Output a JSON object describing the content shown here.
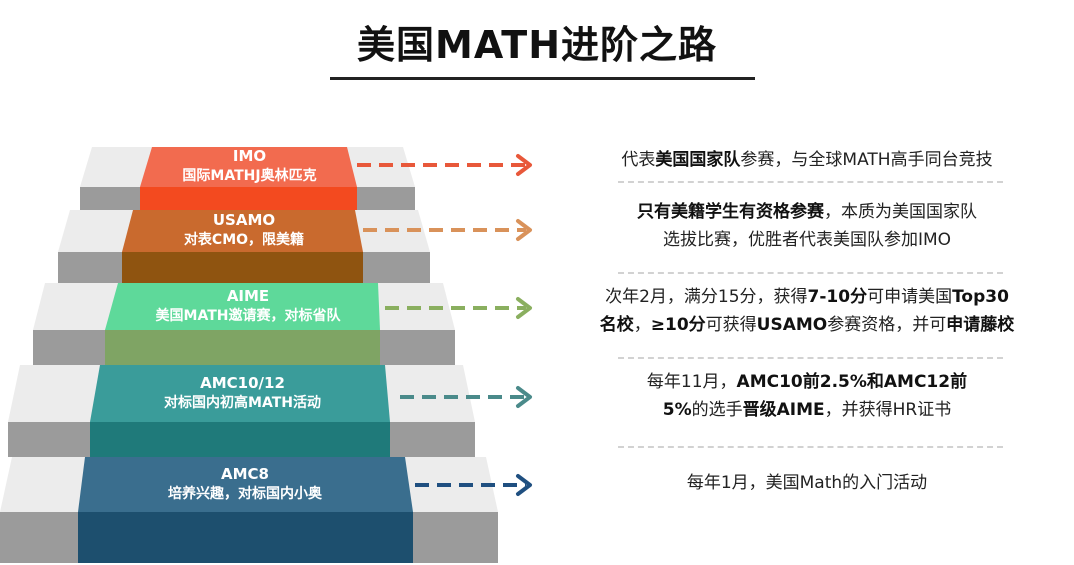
{
  "title": "美国MATH进阶之路",
  "steps": [
    {
      "name": "IMO",
      "desc": "国际MATHJ奥林匹克",
      "top_color": "#f26b4f",
      "front_color": "#f34a1f",
      "arrow_color": "#e8583a"
    },
    {
      "name": "USAMO",
      "desc": "对表CMO，限美籍",
      "top_color": "#c96a2e",
      "front_color": "#8f5410",
      "arrow_color": "#d9925a"
    },
    {
      "name": "AIME",
      "desc": "美国MATH邀请赛，对标省队",
      "top_color": "#5ed99a",
      "front_color": "#7fa464",
      "arrow_color": "#8aaf5f"
    },
    {
      "name": "AMC10/12",
      "desc": "对标国内初高MATH活动",
      "top_color": "#3a9c9a",
      "front_color": "#1f7a7a",
      "arrow_color": "#4a8a8a"
    },
    {
      "name": "AMC8",
      "desc": "培养兴趣，对标国内小奥",
      "top_color": "#3a6e8e",
      "front_color": "#1d4f6e",
      "arrow_color": "#1f4f80"
    }
  ],
  "descriptions": [
    {
      "lines": [
        [
          {
            "t": "代表",
            "b": false
          },
          {
            "t": "美国国家队",
            "b": true
          },
          {
            "t": "参赛，与全球MATH高手同台竞技",
            "b": false
          }
        ]
      ]
    },
    {
      "lines": [
        [
          {
            "t": "只有美籍学生有资格参赛",
            "b": true
          },
          {
            "t": "，本质为美国国家队",
            "b": false
          }
        ],
        [
          {
            "t": "选拔比赛，优胜者代表美国队参加IMO",
            "b": false
          }
        ]
      ]
    },
    {
      "lines": [
        [
          {
            "t": "次年2月，满分15分，获得",
            "b": false
          },
          {
            "t": "7-10分",
            "b": true
          },
          {
            "t": "可申请美国",
            "b": false
          },
          {
            "t": "Top30",
            "b": true
          }
        ],
        [
          {
            "t": "名校",
            "b": true
          },
          {
            "t": "，",
            "b": false
          },
          {
            "t": "≥10分",
            "b": true
          },
          {
            "t": "可获得",
            "b": false
          },
          {
            "t": "USAMO",
            "b": true
          },
          {
            "t": "参赛资格，并可",
            "b": false
          },
          {
            "t": "申请藤校",
            "b": true
          }
        ]
      ]
    },
    {
      "lines": [
        [
          {
            "t": "每年11月，",
            "b": false
          },
          {
            "t": "AMC10前2.5%和AMC12前",
            "b": true
          }
        ],
        [
          {
            "t": "5%",
            "b": true
          },
          {
            "t": "的选手",
            "b": false
          },
          {
            "t": "晋级AIME",
            "b": true
          },
          {
            "t": "，并获得HR证书",
            "b": false
          }
        ]
      ]
    },
    {
      "lines": [
        [
          {
            "t": "每年1月，美国Math的入门活动",
            "b": false
          }
        ]
      ]
    }
  ]
}
